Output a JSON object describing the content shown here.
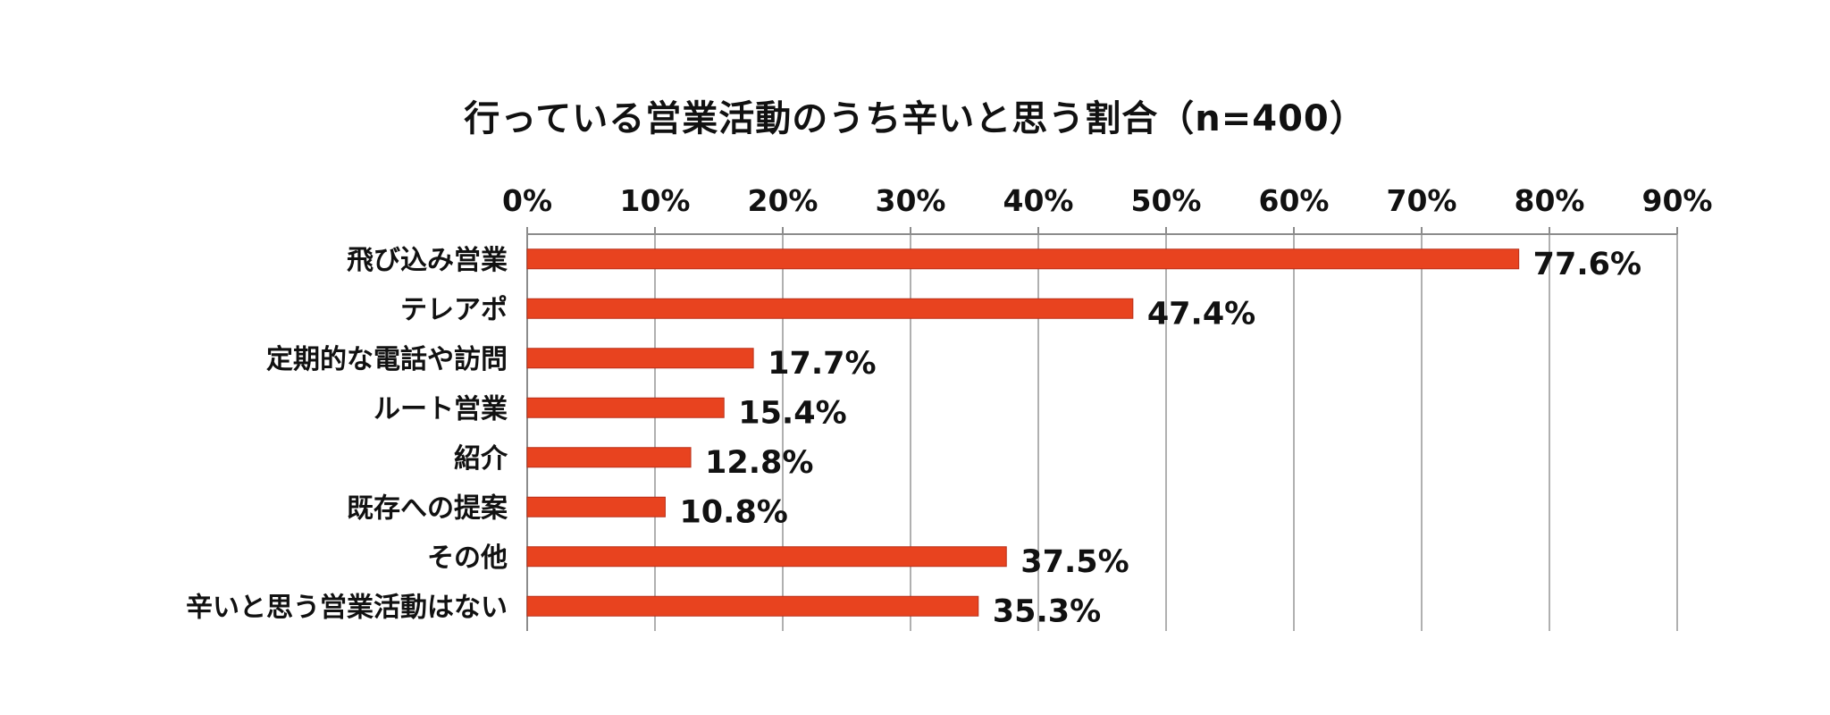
{
  "chart_data": {
    "type": "bar",
    "orientation": "horizontal",
    "title": "行っている営業活動のうち辛いと思う割合（n=400）",
    "categories": [
      "飛び込み営業",
      "テレアポ",
      "定期的な電話や訪問",
      "ルート営業",
      "紹介",
      "既存への提案",
      "その他",
      "辛いと思う営業活動はない"
    ],
    "values": [
      77.6,
      47.4,
      17.7,
      15.4,
      12.8,
      10.8,
      37.5,
      35.3
    ],
    "value_labels": [
      "77.6%",
      "47.4%",
      "17.7%",
      "15.4%",
      "12.8%",
      "10.8%",
      "37.5%",
      "35.3%"
    ],
    "xlim": [
      0,
      90
    ],
    "x_ticks": [
      0,
      10,
      20,
      30,
      40,
      50,
      60,
      70,
      80,
      90
    ],
    "x_tick_labels": [
      "0%",
      "10%",
      "20%",
      "30%",
      "40%",
      "50%",
      "60%",
      "70%",
      "80%",
      "90%"
    ],
    "x_axis_position": "top",
    "grid": true,
    "legend": "none",
    "bar_color": "#e8431f",
    "bar_edge_color": "#b8301a",
    "grid_color": "#b0b0b0",
    "axis_color": "#8c8c8c"
  }
}
